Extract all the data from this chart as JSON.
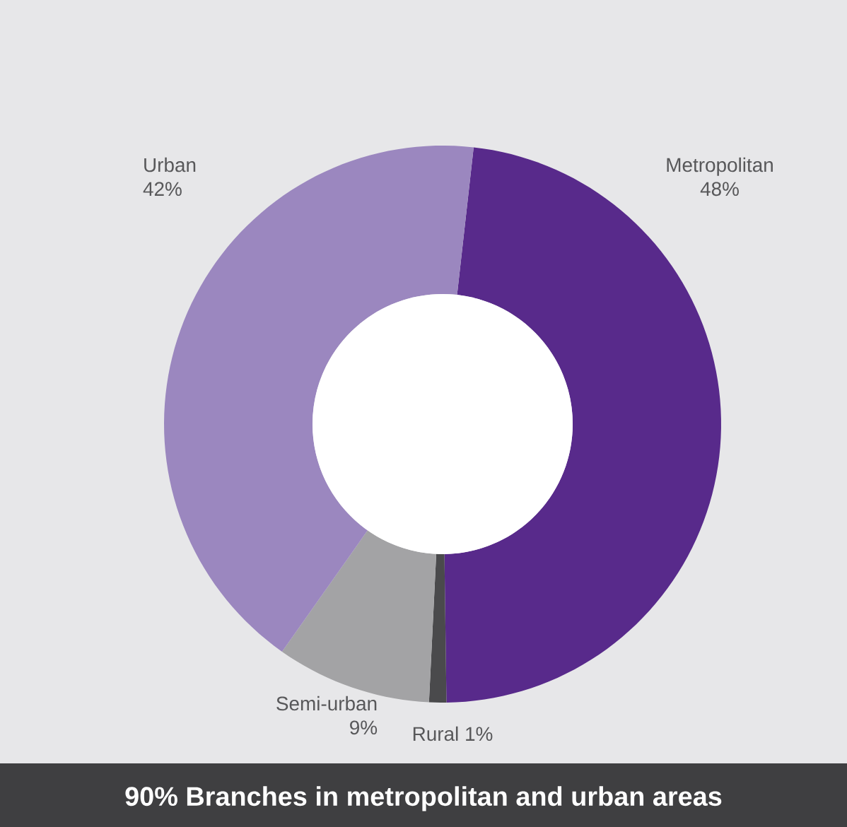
{
  "chart_data": {
    "type": "donut",
    "title": "90% Branches in metropolitan and urban areas",
    "categories": [
      "Metropolitan",
      "Rural",
      "Semi-urban",
      "Urban"
    ],
    "values": [
      48,
      1,
      9,
      42
    ],
    "value_labels": [
      "48%",
      "1%",
      "9%",
      "42%"
    ],
    "colors": [
      "#582a8b",
      "#4a4a4c",
      "#a3a3a5",
      "#9b87bf"
    ]
  }
}
